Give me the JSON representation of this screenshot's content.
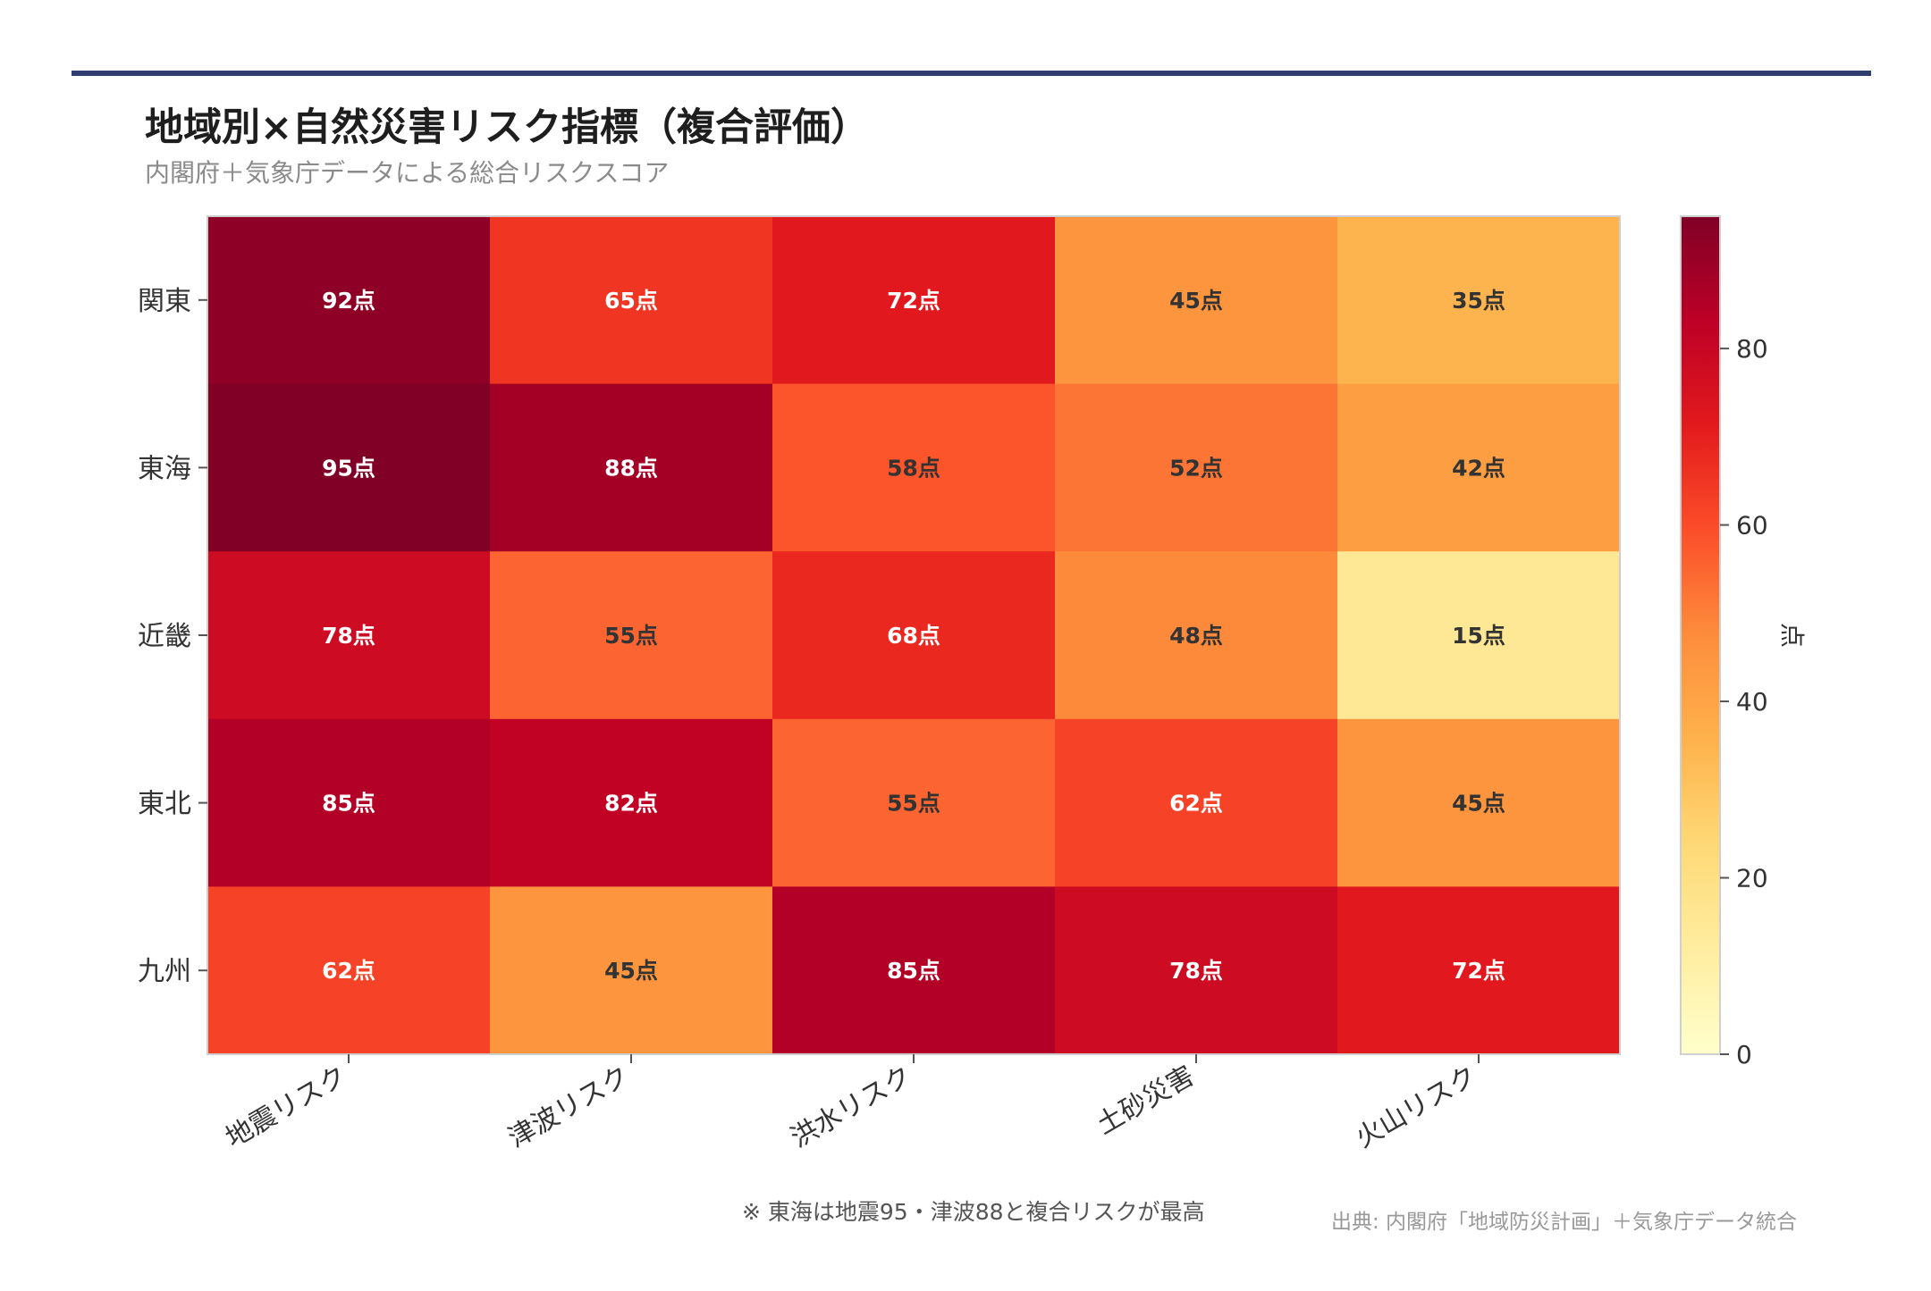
{
  "header": {
    "title": "地域別×自然災害リスク指標（複合評価）",
    "subtitle": "内閣府＋気象庁データによる総合リスクスコア"
  },
  "footer": {
    "note": "※ 東海は地震95・津波88と複合リスクが最高",
    "source": "出典: 内閣府「地域防災計画」＋気象庁データ統合"
  },
  "colors": {
    "accent_rule": "#2f3e6e",
    "colormap": "YlOrRd",
    "label_dark": "#333333",
    "label_light": "#ffffff"
  },
  "chart_data": {
    "type": "heatmap",
    "title": "地域別×自然災害リスク指標（複合評価）",
    "subtitle": "内閣府＋気象庁データによる総合リスクスコア",
    "x_categories": [
      "地震リスク",
      "津波リスク",
      "洪水リスク",
      "土砂災害",
      "火山リスク"
    ],
    "y_categories": [
      "関東",
      "東海",
      "近畿",
      "東北",
      "九州"
    ],
    "values": [
      [
        92,
        65,
        72,
        45,
        35
      ],
      [
        95,
        88,
        58,
        52,
        42
      ],
      [
        78,
        55,
        68,
        48,
        15
      ],
      [
        85,
        82,
        55,
        62,
        45
      ],
      [
        62,
        45,
        85,
        78,
        72
      ]
    ],
    "value_suffix": "点",
    "colorbar": {
      "label": "点",
      "range": [
        0,
        95
      ],
      "ticks": [
        0,
        20,
        40,
        60,
        80
      ]
    }
  }
}
